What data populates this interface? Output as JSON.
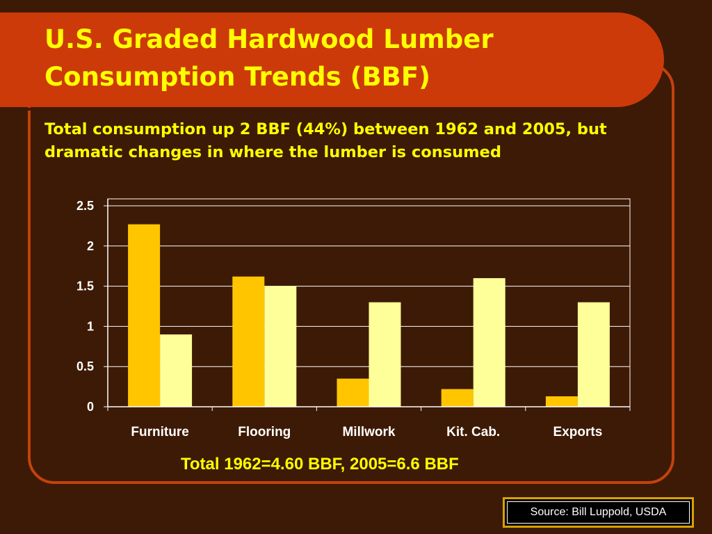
{
  "slide": {
    "title": "U.S. Graded Hardwood Lumber Consumption Trends (BBF)",
    "subtitle": "Total consumption up 2 BBF (44%) between 1962 and 2005, but dramatic changes in where the lumber is consumed",
    "total_note": "Total 1962=4.60 BBF, 2005=6.6 BBF",
    "source": "Source: Bill Luppold, USDA"
  },
  "colors": {
    "background": "#3d1a05",
    "title_bar": "#cc3a0a",
    "text_accent": "#ffff00",
    "series_1962": "#ffc600",
    "series_2005": "#ffff99"
  },
  "chart_data": {
    "type": "bar",
    "title": "",
    "xlabel": "",
    "ylabel": "",
    "categories": [
      "Furniture",
      "Flooring",
      "Millwork",
      "Kit. Cab.",
      "Exports"
    ],
    "series": [
      {
        "values": [
          2.27,
          1.62,
          0.35,
          0.22,
          0.13
        ],
        "color": "#ffc600"
      },
      {
        "values": [
          0.9,
          1.5,
          1.3,
          1.6,
          1.3
        ],
        "color": "#ffff99"
      }
    ],
    "ylim": [
      0,
      2.5
    ],
    "yticks": [
      "0",
      "0.5",
      "1",
      "1.5",
      "2",
      "2.5"
    ],
    "grid": true,
    "legend": "none"
  }
}
